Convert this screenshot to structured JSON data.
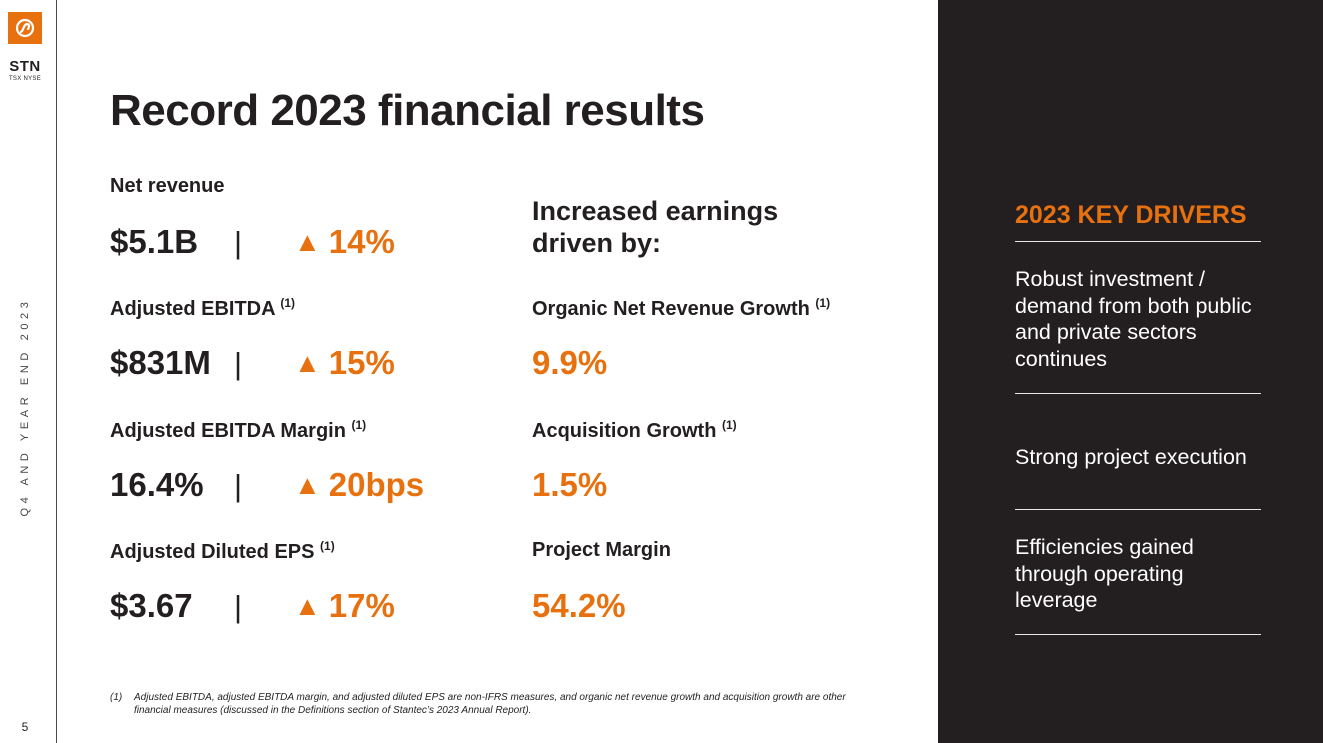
{
  "brand": {
    "ticker": "STN",
    "exchanges": "TSX NYSE",
    "accent_color": "#e8710f",
    "dark_color": "#231f20",
    "logo_icon": "stantec-swirl-icon"
  },
  "sidebar": {
    "vertical_label": "Q4 AND YEAR END 2023",
    "page_number": "5"
  },
  "title": "Record 2023 financial results",
  "metrics": [
    {
      "label": "Net revenue",
      "note": "",
      "value": "$5.1B",
      "separator": "|",
      "change_icon": "▲",
      "change": "14%"
    },
    {
      "label": "Adjusted EBITDA",
      "note": "(1)",
      "value": "$831M",
      "separator": "|",
      "change_icon": "▲",
      "change": "15%"
    },
    {
      "label": "Adjusted EBITDA Margin",
      "note": "(1)",
      "value": "16.4%",
      "separator": "|",
      "change_icon": "▲",
      "change": "20bps"
    },
    {
      "label": "Adjusted Diluted EPS",
      "note": "(1)",
      "value": "$3.67",
      "separator": "|",
      "change_icon": "▲",
      "change": "17%"
    }
  ],
  "earnings": {
    "heading_line1": "Increased earnings",
    "heading_line2": "driven by:",
    "items": [
      {
        "label": "Organic Net Revenue Growth",
        "note": "(1)",
        "value": "9.9%"
      },
      {
        "label": "Acquisition Growth",
        "note": "(1)",
        "value": "1.5%"
      },
      {
        "label": "Project Margin",
        "note": "",
        "value": "54.2%"
      }
    ]
  },
  "footnote": {
    "number": "(1)",
    "text": "Adjusted EBITDA, adjusted EBITDA margin, and adjusted diluted EPS are non-IFRS measures, and organic net revenue growth and acquisition growth are other financial measures (discussed in the Definitions section of Stantec’s 2023 Annual Report)."
  },
  "drivers": {
    "heading": "2023 KEY DRIVERS",
    "items": [
      "Robust investment / demand from both public and private sectors continues",
      "Strong project execution",
      "Efficiencies gained through operating leverage"
    ]
  }
}
